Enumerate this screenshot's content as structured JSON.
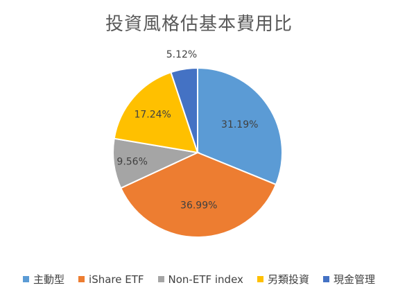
{
  "chart_data": {
    "type": "pie",
    "title": "投資風格估基本費用比",
    "categories": [
      "主動型",
      "iShare ETF",
      "Non-ETF index",
      "另類投資",
      "現金管理"
    ],
    "values": [
      31.19,
      36.99,
      9.56,
      17.24,
      5.12
    ],
    "labels": [
      "31.19%",
      "36.99%",
      "9.56%",
      "17.24%",
      "5.12%"
    ],
    "colors": [
      "#5b9bd5",
      "#ed7d31",
      "#a5a5a5",
      "#ffc000",
      "#4472c4"
    ],
    "legend_position": "bottom"
  }
}
